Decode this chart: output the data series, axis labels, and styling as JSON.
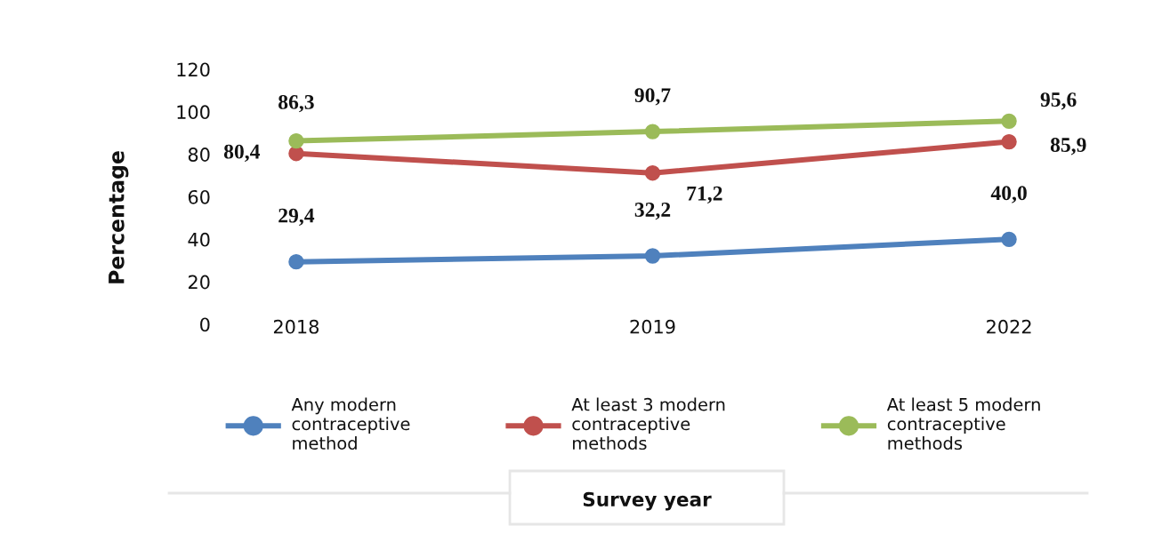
{
  "chart_data": {
    "type": "line",
    "ylabel": "Percentage",
    "annotations": [
      "Survey year"
    ],
    "categories": [
      "2018",
      "2019",
      "2022"
    ],
    "ylim": [
      0,
      120
    ],
    "yticks": [
      0,
      20,
      40,
      60,
      80,
      100,
      120
    ],
    "legend": "bottom",
    "marker": "circle",
    "line_style": "solid",
    "series": [
      {
        "name": "Any modern\ncontraceptive\nmethod",
        "color": "#4f81bd",
        "values": [
          29.4,
          32.2,
          40.0
        ],
        "value_labels": [
          "29,4",
          "32,2",
          "40,0"
        ]
      },
      {
        "name": "At least 3 modern\ncontraceptive\nmethods",
        "color": "#c0504d",
        "values": [
          80.4,
          71.2,
          85.9
        ],
        "value_labels": [
          "80,4",
          "71,2",
          "85,9"
        ]
      },
      {
        "name": "At least 5 modern\ncontraceptive\nmethods",
        "color": "#9bbb59",
        "values": [
          86.3,
          90.7,
          95.6
        ],
        "value_labels": [
          "86,3",
          "90,7",
          "95,6"
        ]
      }
    ]
  }
}
